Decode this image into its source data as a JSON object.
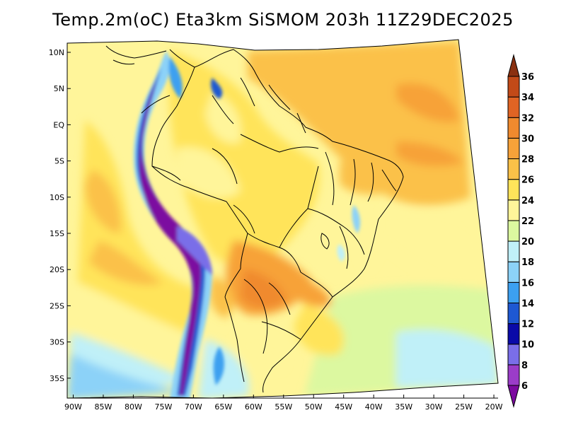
{
  "title": "Temp.2m(oC) Eta3km SiSMOM 203h 11Z29DEC2025",
  "map": {
    "variable": "2 m air temperature",
    "unit": "oC",
    "lon_range": [
      -90,
      -20
    ],
    "lat_range": [
      -38,
      11
    ],
    "lat_ticks": [
      {
        "value": 10,
        "label": "10N"
      },
      {
        "value": 5,
        "label": "5N"
      },
      {
        "value": 0,
        "label": "EQ"
      },
      {
        "value": -5,
        "label": "5S"
      },
      {
        "value": -10,
        "label": "10S"
      },
      {
        "value": -15,
        "label": "15S"
      },
      {
        "value": -20,
        "label": "20S"
      },
      {
        "value": -25,
        "label": "25S"
      },
      {
        "value": -30,
        "label": "30S"
      },
      {
        "value": -35,
        "label": "35S"
      }
    ],
    "lon_ticks": [
      {
        "value": -90,
        "label": "90W"
      },
      {
        "value": -85,
        "label": "85W"
      },
      {
        "value": -80,
        "label": "80W"
      },
      {
        "value": -75,
        "label": "75W"
      },
      {
        "value": -70,
        "label": "70W"
      },
      {
        "value": -65,
        "label": "65W"
      },
      {
        "value": -60,
        "label": "60W"
      },
      {
        "value": -55,
        "label": "55W"
      },
      {
        "value": -50,
        "label": "50W"
      },
      {
        "value": -45,
        "label": "45W"
      },
      {
        "value": -40,
        "label": "40W"
      },
      {
        "value": -35,
        "label": "35W"
      },
      {
        "value": -30,
        "label": "30W"
      },
      {
        "value": -25,
        "label": "25W"
      },
      {
        "value": -20,
        "label": "20W"
      }
    ]
  },
  "colorbar": {
    "levels": [
      6,
      8,
      10,
      12,
      14,
      16,
      18,
      20,
      22,
      24,
      26,
      28,
      30,
      32,
      34,
      36
    ],
    "colors": [
      "#7c0aa0",
      "#9b3cc8",
      "#7a6ee8",
      "#0a0aa8",
      "#1e58d2",
      "#3ca0f0",
      "#8cd2f8",
      "#c0f0f8",
      "#dcf8a0",
      "#fff59a",
      "#ffe45a",
      "#fbc148",
      "#f7a239",
      "#f08a2e",
      "#e06424",
      "#c24a18",
      "#8a3010"
    ],
    "labels": [
      "6",
      "8",
      "10",
      "12",
      "14",
      "16",
      "18",
      "20",
      "22",
      "24",
      "26",
      "28",
      "30",
      "32",
      "34",
      "36"
    ]
  }
}
